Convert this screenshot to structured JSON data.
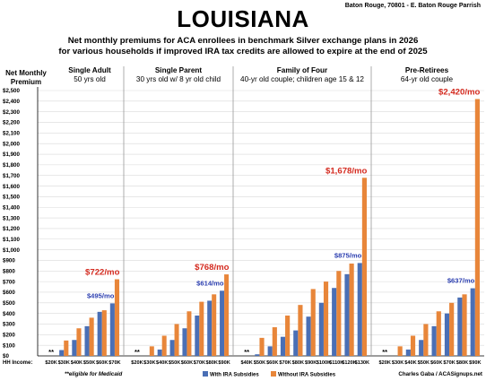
{
  "header": {
    "title": "LOUISIANA",
    "location": "Baton Rouge, 70801 - E. Baton Rouge Parrish",
    "subtitle_line1": "Net monthly premiums for ACA enrollees in benchmark Silver exchange plans in 2026",
    "subtitle_line2": "for various households if improved IRA tax credits are allowed to expire at the end of 2025"
  },
  "chart_data": {
    "type": "bar",
    "ylabel": "Net Monthly Premium",
    "ylim": [
      0,
      2500
    ],
    "y_ticks": [
      "$0",
      "$100",
      "$200",
      "$300",
      "$400",
      "$500",
      "$600",
      "$700",
      "$800",
      "$900",
      "$1,000",
      "$1,100",
      "$1,200",
      "$1,300",
      "$1,400",
      "$1,500",
      "$1,600",
      "$1,700",
      "$1,800",
      "$1,900",
      "$2,000",
      "$2,100",
      "$2,200",
      "$2,300",
      "$2,400",
      "$2,500"
    ],
    "x_axis_label": "HH Income:",
    "medicaid_marker": "**",
    "footnote": "**eligible for Medicaid",
    "credit": "Charles Gaba / ACASignups.net",
    "legend": [
      {
        "name": "With IRA Subsidies",
        "color": "#4a6fb5"
      },
      {
        "name": "Without IRA Subsidies",
        "color": "#e8863a"
      }
    ],
    "panels": [
      {
        "title": "Single Adult",
        "subtitle": "50 yrs old",
        "categories": [
          "$20K",
          "$30K",
          "$40K",
          "$50K",
          "$60K",
          "$70K"
        ],
        "with_ira": [
          0,
          55,
          150,
          280,
          415,
          495
        ],
        "without_ira": [
          0,
          145,
          260,
          360,
          430,
          722
        ],
        "medicaid": [
          true,
          false,
          false,
          false,
          false,
          false
        ],
        "label_with": "$495/mo",
        "label_without": "$722/mo"
      },
      {
        "title": "Single Parent",
        "subtitle": "30 yrs old w/ 8 yr old child",
        "categories": [
          "$20K",
          "$30K",
          "$40K",
          "$50K",
          "$60K",
          "$70K",
          "$80K",
          "$90K"
        ],
        "with_ira": [
          0,
          0,
          60,
          150,
          260,
          380,
          520,
          614
        ],
        "without_ira": [
          0,
          90,
          190,
          300,
          420,
          510,
          580,
          768
        ],
        "medicaid": [
          true,
          false,
          false,
          false,
          false,
          false,
          false,
          false
        ],
        "label_with": "$614/mo",
        "label_without": "$768/mo"
      },
      {
        "title": "Family of Four",
        "subtitle": "40-yr old couple; children age 15 & 12",
        "categories": [
          "$40K",
          "$50K",
          "$60K",
          "$70K",
          "$80K",
          "$90K",
          "$100K",
          "$110K",
          "$120K",
          "$130K"
        ],
        "with_ira": [
          0,
          15,
          90,
          180,
          240,
          370,
          500,
          640,
          770,
          875
        ],
        "without_ira": [
          0,
          170,
          270,
          380,
          480,
          630,
          700,
          800,
          870,
          1678
        ],
        "medicaid": [
          true,
          false,
          false,
          false,
          false,
          false,
          false,
          false,
          false,
          false
        ],
        "label_with": "$875/mo",
        "label_without": "$1,678/mo"
      },
      {
        "title": "Pre-Retirees",
        "subtitle": "64-yr old couple",
        "categories": [
          "$20K",
          "$30K",
          "$40K",
          "$50K",
          "$60K",
          "$70K",
          "$80K",
          "$90K"
        ],
        "with_ira": [
          0,
          0,
          60,
          150,
          280,
          400,
          550,
          637
        ],
        "without_ira": [
          0,
          90,
          190,
          300,
          420,
          500,
          580,
          2420
        ],
        "medicaid": [
          true,
          false,
          false,
          false,
          false,
          false,
          false,
          false
        ],
        "label_with": "$637/mo",
        "label_without": "$2,420/mo"
      }
    ]
  }
}
